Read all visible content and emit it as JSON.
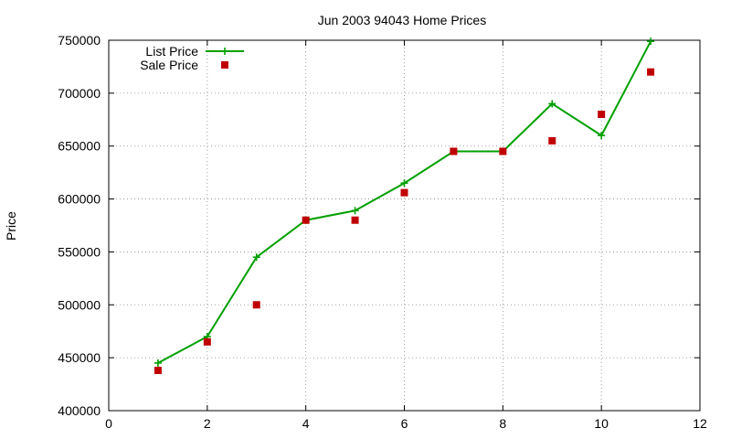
{
  "chart_data": {
    "type": "line",
    "title": "Jun 2003 94043 Home Prices",
    "xlabel": "",
    "ylabel": "Price",
    "xlim": [
      0,
      12
    ],
    "ylim": [
      400000,
      750000
    ],
    "xticks": [
      0,
      2,
      4,
      6,
      8,
      10,
      12
    ],
    "yticks": [
      400000,
      450000,
      500000,
      550000,
      600000,
      650000,
      700000,
      750000
    ],
    "xtick_labels": [
      "0",
      "2",
      "4",
      "6",
      "8",
      "10",
      "12"
    ],
    "ytick_labels": [
      "400000",
      "450000",
      "500000",
      "550000",
      "600000",
      "650000",
      "700000",
      "750000"
    ],
    "grid": true,
    "legend_position": "top-left",
    "series": [
      {
        "name": "List Price",
        "style": "lines+points",
        "color": "#00a000",
        "marker": "plus",
        "x": [
          1,
          2,
          3,
          4,
          5,
          6,
          7,
          8,
          9,
          10,
          11
        ],
        "y": [
          445000,
          470000,
          545000,
          580000,
          589000,
          615000,
          645000,
          645000,
          690000,
          660000,
          749000
        ]
      },
      {
        "name": "Sale Price",
        "style": "points",
        "color": "#c00000",
        "marker": "square",
        "x": [
          1,
          2,
          3,
          4,
          5,
          6,
          7,
          8,
          9,
          10,
          11
        ],
        "y": [
          438000,
          465000,
          500000,
          580000,
          580000,
          606000,
          645000,
          645000,
          655000,
          680000,
          720000
        ]
      }
    ]
  }
}
